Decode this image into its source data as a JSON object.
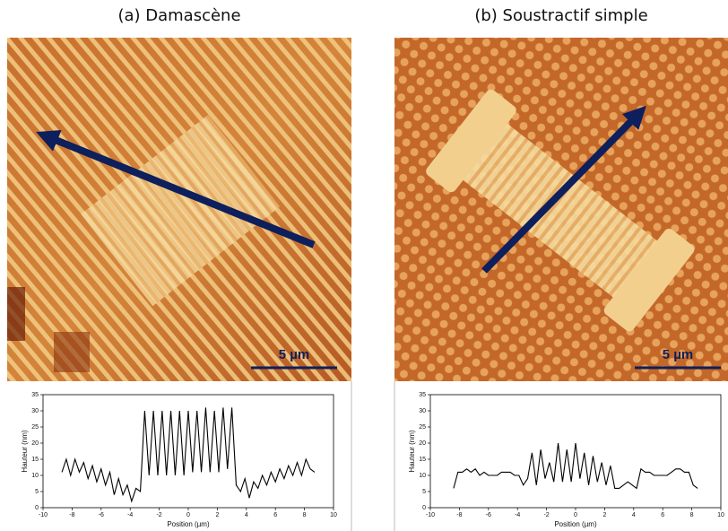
{
  "chart_data": [
    {
      "type": "line",
      "title": "(a) Damascène",
      "annotation": "5 µm",
      "x_label": "Position (µm)",
      "y_label": "Hauteur (nm)",
      "x": [
        -8.7,
        -8.4,
        -8.1,
        -7.8,
        -7.5,
        -7.2,
        -6.9,
        -6.6,
        -6.3,
        -6.0,
        -5.7,
        -5.4,
        -5.1,
        -4.8,
        -4.5,
        -4.2,
        -3.9,
        -3.6,
        -3.3,
        -3.0,
        -2.7,
        -2.4,
        -2.1,
        -1.8,
        -1.5,
        -1.2,
        -0.9,
        -0.6,
        -0.3,
        0,
        0.3,
        0.6,
        0.9,
        1.2,
        1.5,
        1.8,
        2.1,
        2.4,
        2.7,
        3.0,
        3.3,
        3.6,
        3.9,
        4.2,
        4.5,
        4.8,
        5.1,
        5.4,
        5.7,
        6.0,
        6.3,
        6.6,
        6.9,
        7.2,
        7.5,
        7.8,
        8.1,
        8.4,
        8.7
      ],
      "values": [
        11,
        15,
        10,
        15,
        11,
        14,
        9,
        13,
        8,
        12,
        7,
        11,
        4,
        9,
        4,
        7,
        2,
        6,
        5,
        30,
        10,
        30,
        10,
        30,
        10,
        30,
        10,
        30,
        10,
        30,
        11,
        30,
        11,
        31,
        11,
        30,
        11,
        31,
        12,
        31,
        7,
        5,
        9,
        3,
        8,
        6,
        10,
        7,
        11,
        8,
        12,
        9,
        13,
        10,
        14,
        10,
        15,
        12,
        11
      ],
      "color": "#000000",
      "xlim": [
        -10,
        10
      ],
      "xticks": [
        -10,
        -8,
        -6,
        -4,
        -2,
        0,
        2,
        4,
        6,
        8,
        10
      ],
      "ylim": [
        0,
        35
      ],
      "yticks": [
        0,
        5,
        10,
        15,
        20,
        25,
        30,
        35
      ]
    },
    {
      "type": "line",
      "title": "(b) Soustractif simple",
      "annotation": "5 µm",
      "x_label": "Position (µm)",
      "y_label": "Hauteur (nm)",
      "x": [
        -8.4,
        -8.1,
        -7.8,
        -7.5,
        -7.2,
        -6.9,
        -6.6,
        -6.3,
        -6.0,
        -5.7,
        -5.4,
        -5.1,
        -4.8,
        -4.5,
        -4.2,
        -3.9,
        -3.6,
        -3.3,
        -3.0,
        -2.7,
        -2.4,
        -2.1,
        -1.8,
        -1.5,
        -1.2,
        -0.9,
        -0.6,
        -0.3,
        0,
        0.3,
        0.6,
        0.9,
        1.2,
        1.5,
        1.8,
        2.1,
        2.4,
        2.7,
        3.0,
        3.3,
        3.6,
        3.9,
        4.2,
        4.5,
        4.8,
        5.1,
        5.4,
        5.7,
        6.0,
        6.3,
        6.6,
        6.9,
        7.2,
        7.5,
        7.8,
        8.1,
        8.4
      ],
      "values": [
        6,
        11,
        11,
        12,
        11,
        12,
        10,
        11,
        10,
        10,
        10,
        11,
        11,
        11,
        10,
        10,
        7,
        9,
        17,
        7,
        18,
        9,
        14,
        8,
        20,
        8,
        18,
        8,
        20,
        9,
        17,
        7,
        16,
        8,
        14,
        7,
        13,
        6,
        6,
        7,
        8,
        7,
        6,
        12,
        11,
        11,
        10,
        10,
        10,
        10,
        11,
        12,
        12,
        11,
        11,
        7,
        6
      ],
      "color": "#000000",
      "xlim": [
        -10,
        10
      ],
      "xticks": [
        -10,
        -8,
        -6,
        -4,
        -2,
        0,
        2,
        4,
        6,
        8,
        10
      ],
      "ylim": [
        0,
        35
      ],
      "yticks": [
        0,
        5,
        10,
        15,
        20,
        25,
        30,
        35
      ]
    }
  ]
}
